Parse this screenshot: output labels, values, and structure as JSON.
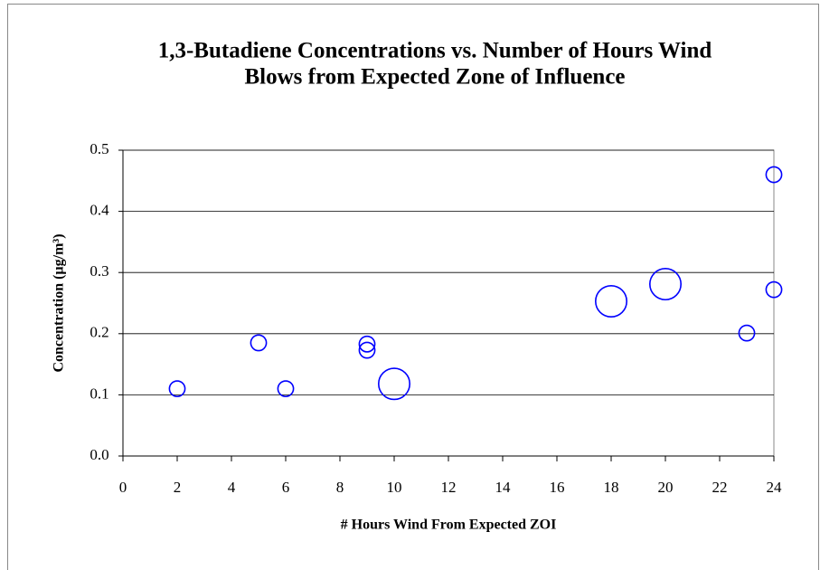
{
  "chart_data": {
    "type": "bubble",
    "title": [
      "1,3-Butadiene Concentrations vs. Number of Hours Wind",
      "Blows from Expected Zone of Influence"
    ],
    "x_label": "# Hours Wind From Expected ZOI",
    "y_label": "Concentration (µg/m³)",
    "series": [
      {
        "color": "#0000ff",
        "x": [
          2,
          5,
          6,
          9,
          9,
          10,
          18,
          20,
          23,
          24,
          24
        ],
        "values": [
          0.11,
          0.185,
          0.11,
          0.183,
          0.173,
          0.118,
          0.253,
          0.281,
          0.201,
          0.272,
          0.46
        ],
        "sizes": [
          1,
          1,
          1,
          1,
          1,
          4,
          4,
          4,
          1,
          1,
          1
        ]
      }
    ],
    "xlim": [
      0,
      24
    ],
    "xticks": [
      0,
      2,
      4,
      6,
      8,
      10,
      12,
      14,
      16,
      18,
      20,
      22,
      24
    ],
    "ylim": [
      0,
      0.5
    ],
    "yticks": [
      {
        "value": 0,
        "label": "0.0"
      },
      0.1,
      0.2,
      0.3,
      0.4,
      0.5
    ],
    "grid": true
  }
}
